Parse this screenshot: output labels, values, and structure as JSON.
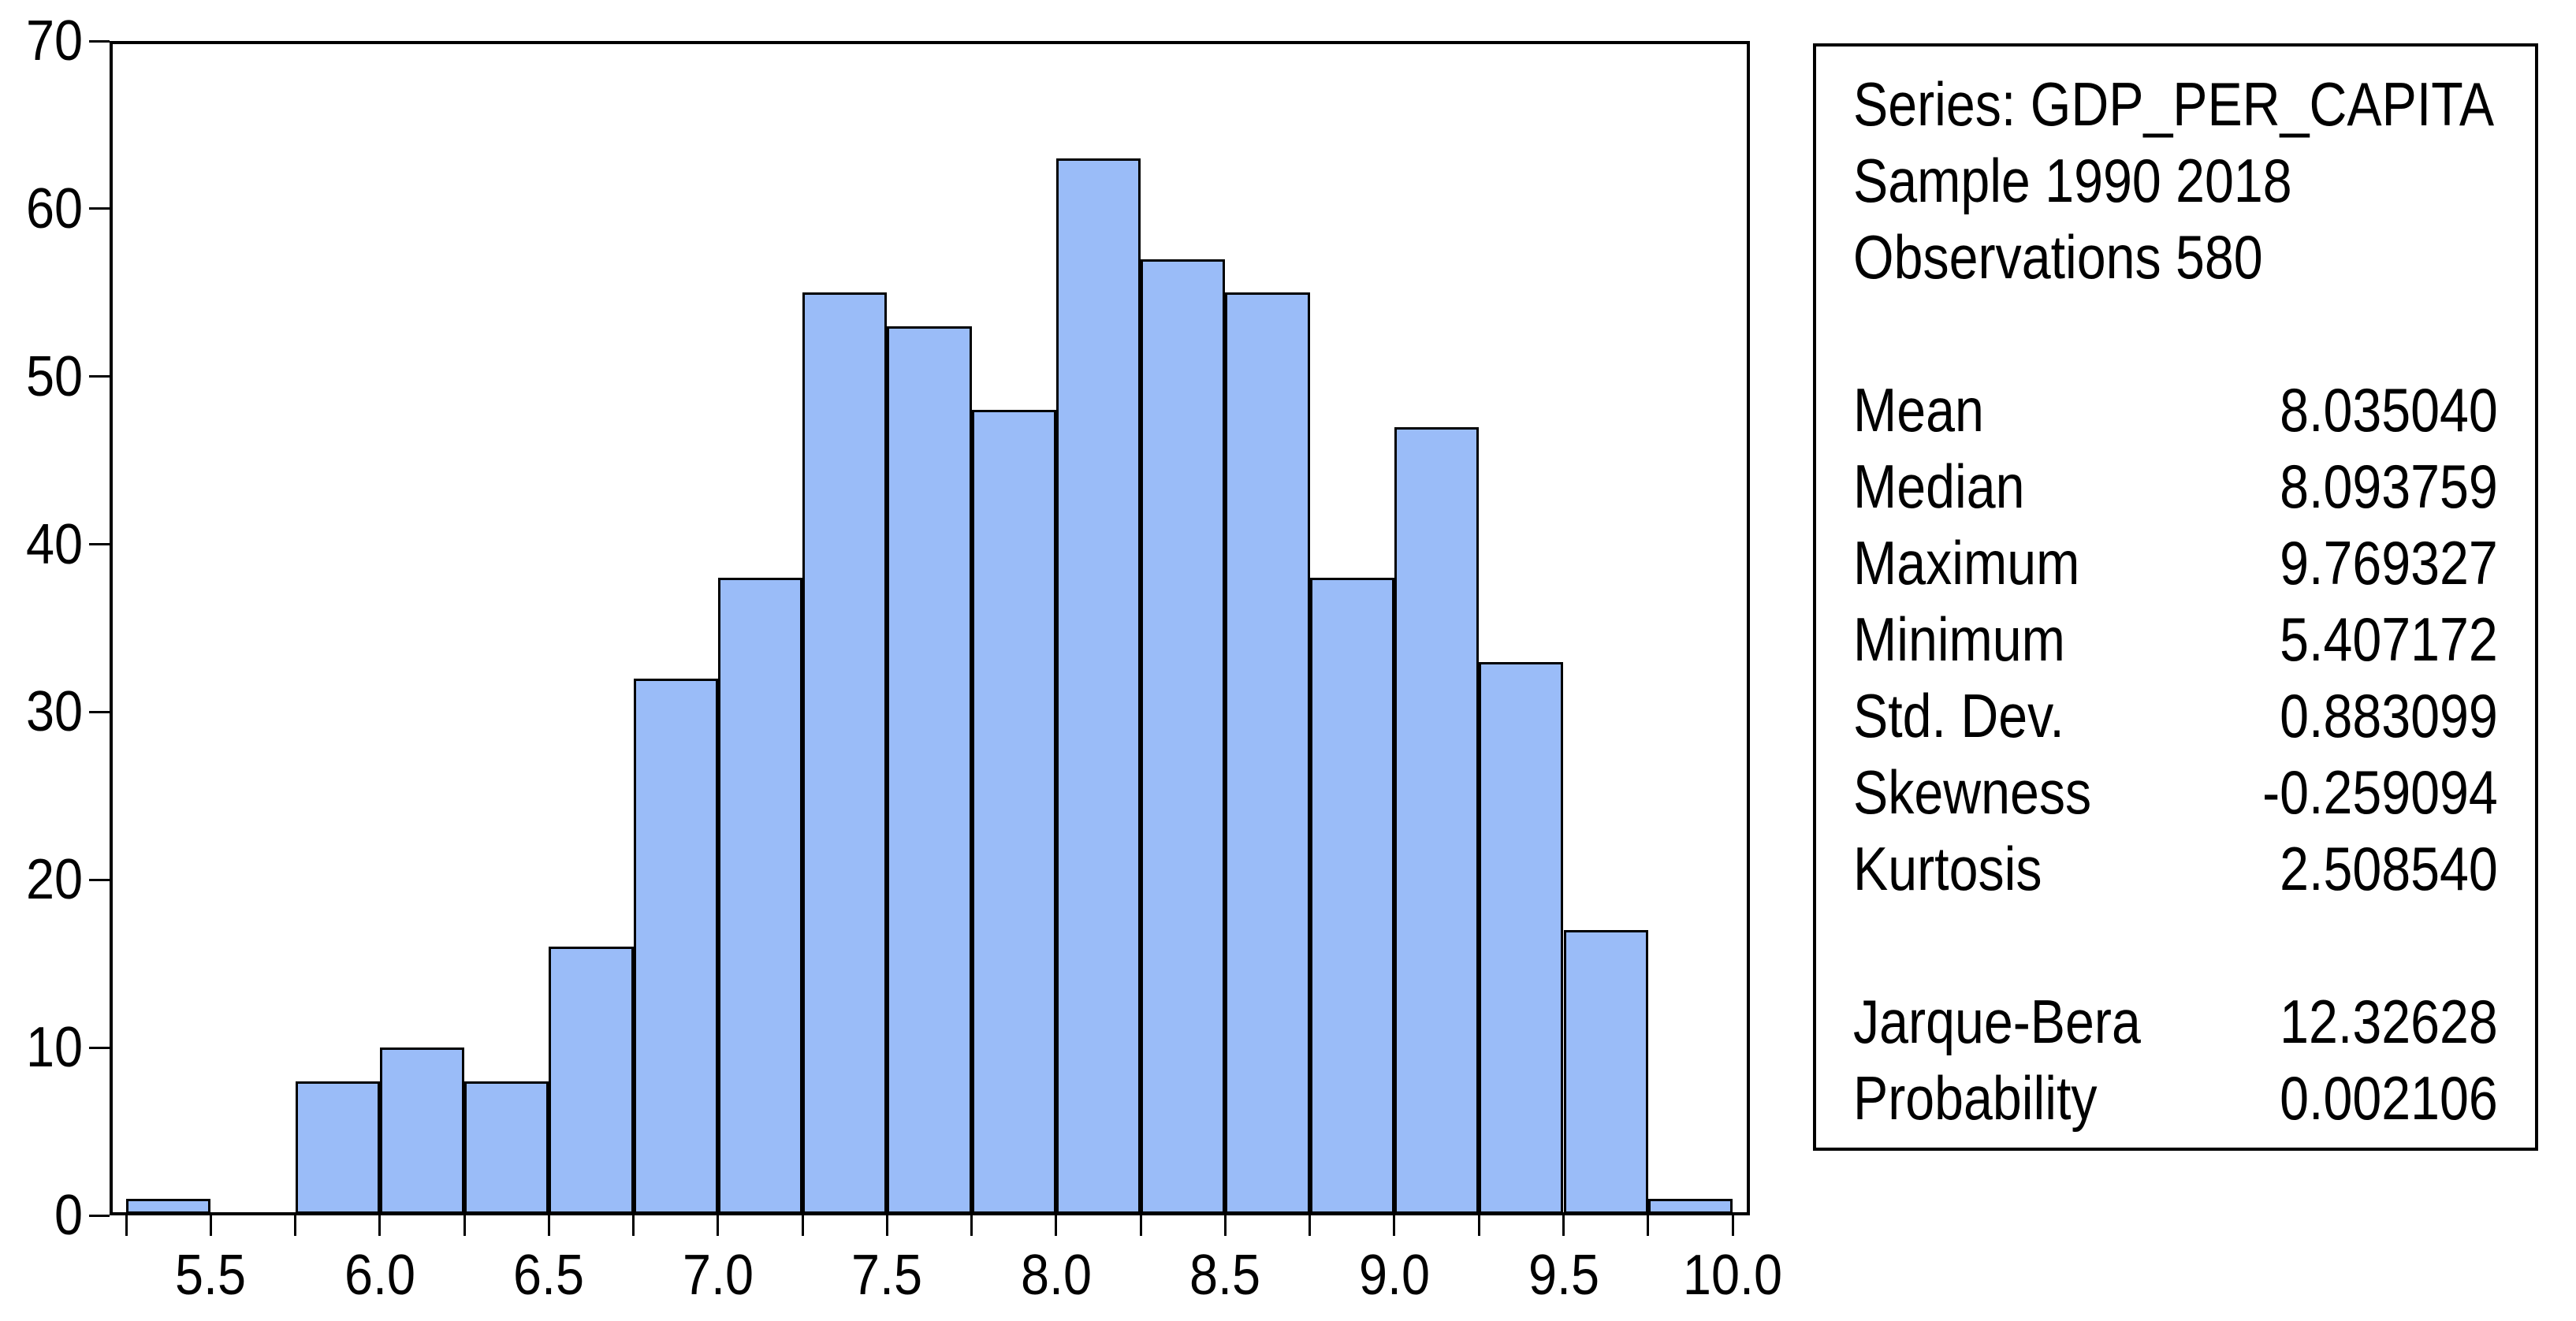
{
  "chart_data": {
    "type": "bar",
    "subtype": "histogram",
    "title": "",
    "xlabel": "",
    "ylabel": "",
    "bins": {
      "start": 5.25,
      "width": 0.25
    },
    "categories": [
      "5.25-5.5",
      "5.5-5.75",
      "5.75-6.0",
      "6.0-6.25",
      "6.25-6.5",
      "6.5-6.75",
      "6.75-7.0",
      "7.0-7.25",
      "7.25-7.5",
      "7.5-7.75",
      "7.75-8.0",
      "8.0-8.25",
      "8.25-8.5",
      "8.5-8.75",
      "8.75-9.0",
      "9.0-9.25",
      "9.25-9.5",
      "9.5-9.75",
      "9.75-10.0"
    ],
    "values": [
      1,
      0,
      8,
      10,
      8,
      16,
      32,
      38,
      55,
      53,
      48,
      63,
      57,
      55,
      38,
      47,
      33,
      17,
      1
    ],
    "xlim": [
      5.2,
      10.05
    ],
    "ylim": [
      0,
      70
    ],
    "x_tick_step": 0.25,
    "x_tick_labels": [
      "5.5",
      "6.0",
      "6.5",
      "7.0",
      "7.5",
      "8.0",
      "8.5",
      "9.0",
      "9.5",
      "10.0"
    ],
    "x_label_start": 5.5,
    "x_label_step": 0.5,
    "y_tick_labels": [
      "0",
      "10",
      "20",
      "30",
      "40",
      "50",
      "60",
      "70"
    ],
    "y_tick_step": 10,
    "grid": "off",
    "legend": "none",
    "bar_fill_color": "#9ABCF8",
    "bar_border_color": "#000000",
    "frame_color": "#000000"
  },
  "stats_panel": {
    "series_line": "Series: GDP_PER_CAPITA",
    "sample_line": "Sample 1990 2018",
    "observations_line": "Observations 580",
    "rows": [
      {
        "label": "Mean",
        "value": "8.035040"
      },
      {
        "label": "Median",
        "value": "8.093759"
      },
      {
        "label": "Maximum",
        "value": "9.769327"
      },
      {
        "label": "Minimum",
        "value": "5.407172"
      },
      {
        "label": "Std. Dev.",
        "value": "0.883099"
      },
      {
        "label": "Skewness",
        "value": "-0.259094"
      },
      {
        "label": "Kurtosis",
        "value": "2.508540"
      }
    ],
    "rows2": [
      {
        "label": "Jarque-Bera",
        "value": "12.32628"
      },
      {
        "label": "Probability",
        "value": "0.002106"
      }
    ]
  }
}
